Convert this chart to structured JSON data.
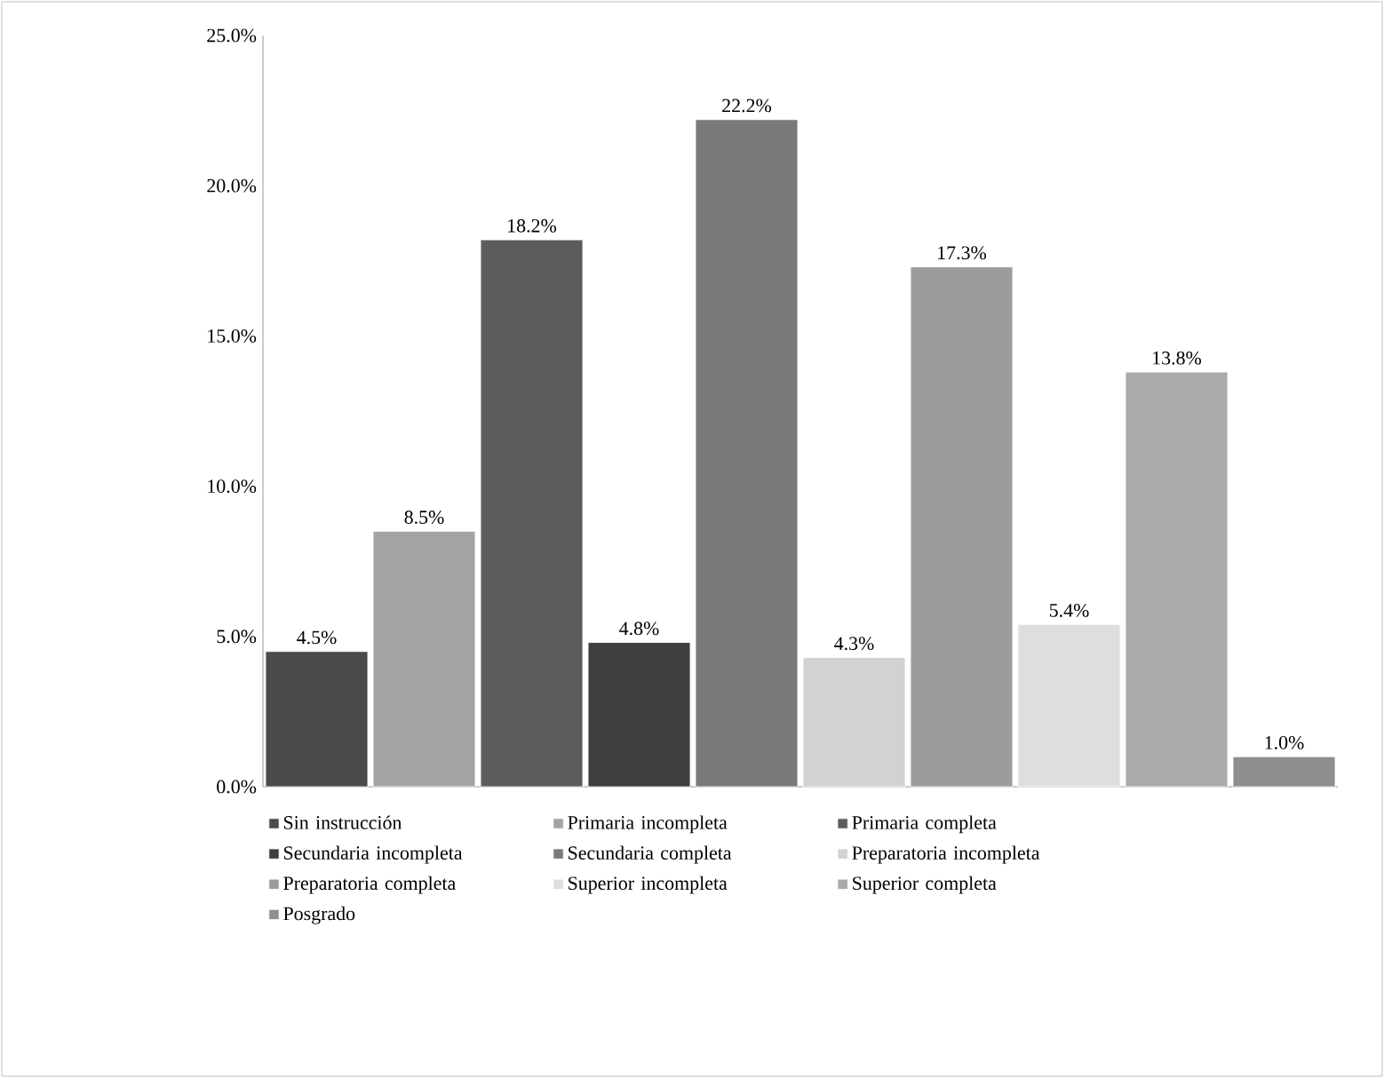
{
  "chart_data": {
    "type": "bar",
    "categories": [
      null,
      null,
      null,
      null,
      null,
      null,
      null,
      null,
      null,
      null
    ],
    "series": [
      {
        "name": "Sin instrucción",
        "color": "#4a4a4a",
        "values": [
          4.5,
          null,
          null,
          null,
          null,
          null,
          null,
          null,
          null,
          null
        ],
        "value_labels": [
          "4.5%",
          null,
          null,
          null,
          null,
          null,
          null,
          null,
          null,
          null
        ]
      },
      {
        "name": "Primaria incompleta",
        "color": "#a3a3a3",
        "values": [
          null,
          8.5,
          null,
          null,
          null,
          null,
          null,
          null,
          null,
          null
        ],
        "value_labels": [
          null,
          "8.5%",
          null,
          null,
          null,
          null,
          null,
          null,
          null,
          null
        ]
      },
      {
        "name": "Primaria completa",
        "color": "#5c5c5c",
        "values": [
          null,
          null,
          18.2,
          null,
          null,
          null,
          null,
          null,
          null,
          null
        ],
        "value_labels": [
          null,
          null,
          "18.2%",
          null,
          null,
          null,
          null,
          null,
          null,
          null
        ]
      },
      {
        "name": "Secundaria incompleta",
        "color": "#3e3e3e",
        "values": [
          null,
          null,
          null,
          4.8,
          null,
          null,
          null,
          null,
          null,
          null
        ],
        "value_labels": [
          null,
          null,
          null,
          "4.8%",
          null,
          null,
          null,
          null,
          null,
          null
        ]
      },
      {
        "name": "Secundaria completa",
        "color": "#7a7a7a",
        "values": [
          null,
          null,
          null,
          null,
          22.2,
          null,
          null,
          null,
          null,
          null
        ],
        "value_labels": [
          null,
          null,
          null,
          null,
          "22.2%",
          null,
          null,
          null,
          null,
          null
        ]
      },
      {
        "name": "Preparatoria incompleta",
        "color": "#d2d2d2",
        "values": [
          null,
          null,
          null,
          null,
          null,
          4.3,
          null,
          null,
          null,
          null
        ],
        "value_labels": [
          null,
          null,
          null,
          null,
          null,
          "4.3%",
          null,
          null,
          null,
          null
        ]
      },
      {
        "name": "Preparatoria completa",
        "color": "#9c9c9c",
        "values": [
          null,
          null,
          null,
          null,
          null,
          null,
          17.3,
          null,
          null,
          null
        ],
        "value_labels": [
          null,
          null,
          null,
          null,
          null,
          null,
          "17.3%",
          null,
          null,
          null
        ]
      },
      {
        "name": "Superior incompleta",
        "color": "#dedede",
        "values": [
          null,
          null,
          null,
          null,
          null,
          null,
          null,
          5.4,
          null,
          null
        ],
        "value_labels": [
          null,
          null,
          null,
          null,
          null,
          null,
          null,
          "5.4%",
          null,
          null
        ]
      },
      {
        "name": "Superior completa",
        "color": "#aaaaaa",
        "values": [
          null,
          null,
          null,
          null,
          null,
          null,
          null,
          null,
          13.8,
          null
        ],
        "value_labels": [
          null,
          null,
          null,
          null,
          null,
          null,
          null,
          null,
          "13.8%",
          null
        ]
      },
      {
        "name": "Posgrado",
        "color": "#8e8e8e",
        "values": [
          null,
          null,
          null,
          null,
          null,
          null,
          null,
          null,
          null,
          1.0
        ],
        "value_labels": [
          null,
          null,
          null,
          null,
          null,
          null,
          null,
          null,
          null,
          "1.0%"
        ]
      }
    ],
    "ylim": [
      0,
      25
    ],
    "yticks": [
      {
        "value": 0,
        "label": "0.0%"
      },
      {
        "value": 5,
        "label": "5.0%"
      },
      {
        "value": 10,
        "label": "10.0%"
      },
      {
        "value": 15,
        "label": "15.0%"
      },
      {
        "value": 20,
        "label": "20.0%"
      },
      {
        "value": 25,
        "label": "25.0%"
      }
    ],
    "legend": "bottom",
    "grid": false
  }
}
